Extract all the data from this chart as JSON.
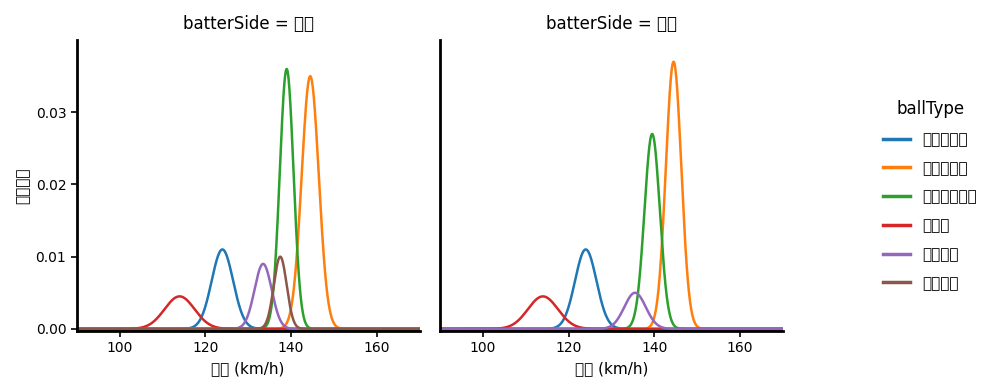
{
  "title_left": "batterSide = 左打",
  "title_right": "batterSide = 右打",
  "xlabel": "球速 (km/h)",
  "ylabel": "確率密度",
  "legend_title": "ballType",
  "xlim": [
    90,
    170
  ],
  "ylim": [
    -0.0003,
    0.04
  ],
  "xticks": [
    100,
    120,
    140,
    160
  ],
  "yticks": [
    0.0,
    0.01,
    0.02,
    0.03
  ],
  "ball_types": [
    "スライダー",
    "ストレート",
    "カットボール",
    "カーブ",
    "フォーク",
    "シュート"
  ],
  "colors": {
    "スライダー": "#1f77b4",
    "ストレート": "#ff7f0e",
    "カットボール": "#2ca02c",
    "カーブ": "#d62728",
    "フォーク": "#9467bd",
    "シュート": "#8c564b"
  },
  "left_data": {
    "スライダー": {
      "mean": 124.0,
      "std": 2.5,
      "scale": 0.011
    },
    "ストレート": {
      "mean": 144.5,
      "std": 2.0,
      "scale": 0.035
    },
    "カットボール": {
      "mean": 139.0,
      "std": 1.6,
      "scale": 0.036
    },
    "カーブ": {
      "mean": 114.0,
      "std": 3.5,
      "scale": 0.0045
    },
    "フォーク": {
      "mean": 133.5,
      "std": 2.0,
      "scale": 0.009
    },
    "シュート": {
      "mean": 137.5,
      "std": 1.5,
      "scale": 0.01
    }
  },
  "right_data": {
    "スライダー": {
      "mean": 124.0,
      "std": 2.5,
      "scale": 0.011
    },
    "ストレート": {
      "mean": 144.5,
      "std": 1.8,
      "scale": 0.037
    },
    "カットボール": {
      "mean": 139.5,
      "std": 1.8,
      "scale": 0.027
    },
    "カーブ": {
      "mean": 114.0,
      "std": 3.5,
      "scale": 0.0045
    },
    "フォーク": {
      "mean": 135.5,
      "std": 2.5,
      "scale": 0.005
    },
    "シュート": {
      "mean": 137.5,
      "std": 1.5,
      "scale": 0.0
    }
  },
  "background_color": "#ffffff",
  "linewidth": 1.8
}
